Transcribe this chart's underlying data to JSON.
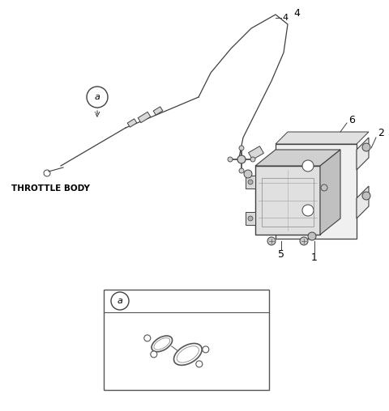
{
  "bg_color": "#ffffff",
  "line_color": "#404040",
  "text_color": "#000000",
  "throttle_body_label": "THROTTLE BODY",
  "fig_width": 4.8,
  "fig_height": 5.08,
  "dpi": 100
}
